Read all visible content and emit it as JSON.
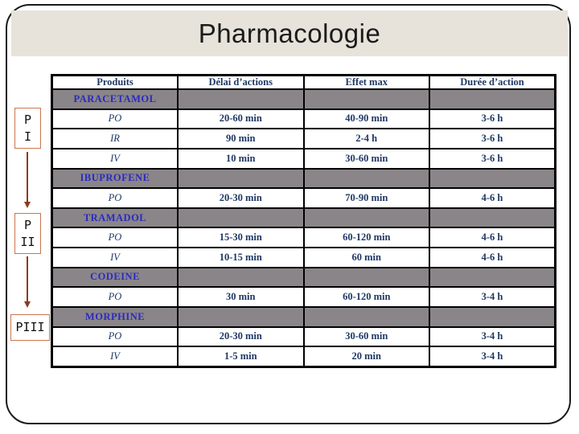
{
  "slide": {
    "title": "Pharmacologie"
  },
  "colors": {
    "banner_bg": "#e7e3da",
    "slide_border": "#1a1a1a",
    "table_border": "#000000",
    "group_row_bg": "#8a8589",
    "header_text": "#1f3864",
    "drug_name_text": "#2a2ac0",
    "value_text": "#1f3864",
    "phase_box_border": "#c9764f",
    "phase_text": "#111111",
    "arrow_color": "#8b3a1e"
  },
  "phases": [
    {
      "id": "phase-1",
      "lines": [
        "P",
        "I"
      ]
    },
    {
      "id": "phase-2",
      "lines": [
        "P",
        "II"
      ]
    },
    {
      "id": "phase-3",
      "lines": [
        "PIII"
      ]
    }
  ],
  "table": {
    "headers": [
      "Produits",
      "Délai d’actions",
      "Effet max",
      "Durée d’action"
    ],
    "rows": [
      {
        "type": "group",
        "label": "PARACETAMOL"
      },
      {
        "type": "data",
        "route": "PO",
        "delai": "20-60 min",
        "effet": "40-90 min",
        "duree": "3-6 h"
      },
      {
        "type": "data",
        "route": "IR",
        "delai": "90 min",
        "effet": "2-4 h",
        "duree": "3-6 h"
      },
      {
        "type": "data",
        "route": "IV",
        "delai": "10 min",
        "effet": "30-60 min",
        "duree": "3-6 h"
      },
      {
        "type": "group",
        "label": "IBUPROFENE"
      },
      {
        "type": "data",
        "route": "PO",
        "delai": "20-30 min",
        "effet": "70-90 min",
        "duree": "4-6 h"
      },
      {
        "type": "group",
        "label": "TRAMADOL"
      },
      {
        "type": "data",
        "route": "PO",
        "delai": "15-30 min",
        "effet": "60-120 min",
        "duree": "4-6 h"
      },
      {
        "type": "data",
        "route": "IV",
        "delai": "10-15 min",
        "effet": "60 min",
        "duree": "4-6 h"
      },
      {
        "type": "group",
        "label": "CODEINE"
      },
      {
        "type": "data",
        "route": "PO",
        "delai": "30 min",
        "effet": "60-120 min",
        "duree": "3-4 h"
      },
      {
        "type": "group",
        "label": "MORPHINE"
      },
      {
        "type": "data",
        "route": "PO",
        "delai": "20-30 min",
        "effet": "30-60 min",
        "duree": "3-4 h"
      },
      {
        "type": "data",
        "route": "IV",
        "delai": "1-5 min",
        "effet": "20 min",
        "duree": "3-4 h"
      }
    ]
  }
}
